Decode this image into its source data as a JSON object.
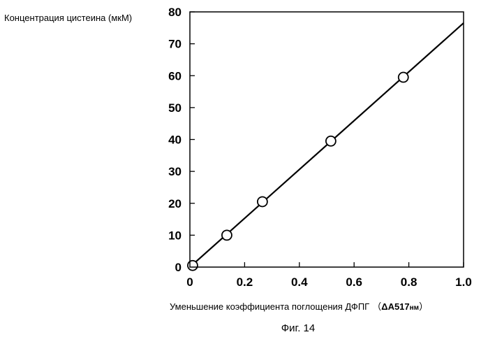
{
  "chart_data": {
    "type": "scatter",
    "ylabel": "Концентрация цистеина (мкМ)",
    "xlabel_prefix": "Уменьшение коэффициента поглощения ДФПГ",
    "xlabel_unit_open": "（",
    "xlabel_unit_delta": "Δ",
    "xlabel_unit_main": "A517",
    "xlabel_unit_sub": "нм",
    "xlabel_unit_close": "）",
    "caption": "Фиг. 14",
    "xlim": [
      0,
      1.0
    ],
    "ylim": [
      0,
      80
    ],
    "x_ticks": [
      "0",
      "0.2",
      "0.4",
      "0.6",
      "0.8",
      "1.0"
    ],
    "y_ticks": [
      "0",
      "10",
      "20",
      "30",
      "40",
      "50",
      "60",
      "70",
      "80"
    ],
    "grid": false,
    "series": [
      {
        "points": [
          {
            "x": 0.01,
            "y": 0.5
          },
          {
            "x": 0.135,
            "y": 10
          },
          {
            "x": 0.265,
            "y": 20.5
          },
          {
            "x": 0.515,
            "y": 39.5
          },
          {
            "x": 0.78,
            "y": 59.5
          }
        ]
      }
    ],
    "fit_line": {
      "x": [
        0,
        1.0
      ],
      "y": [
        0,
        76.5
      ]
    }
  }
}
